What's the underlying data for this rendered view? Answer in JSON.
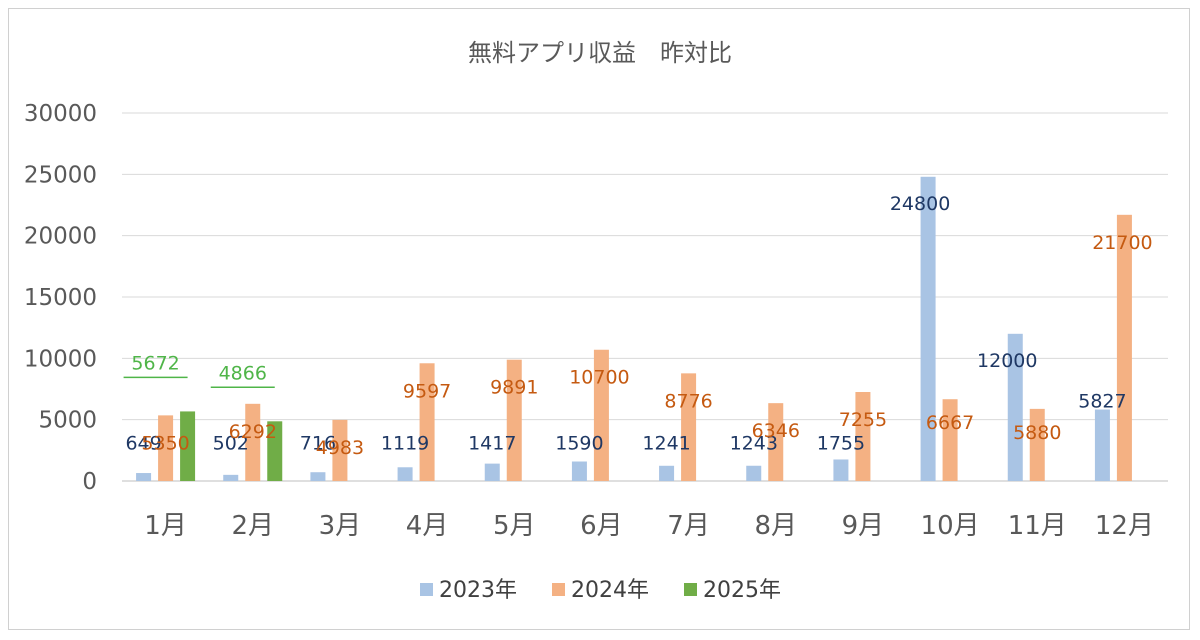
{
  "chart_data": {
    "type": "bar",
    "title": "無料アプリ収益　昨対比",
    "xlabel": "",
    "ylabel": "",
    "ylim": [
      0,
      30000
    ],
    "yticks": [
      0,
      5000,
      10000,
      15000,
      20000,
      25000,
      30000
    ],
    "grid": true,
    "legend_position": "bottom",
    "categories": [
      "1月",
      "2月",
      "3月",
      "4月",
      "5月",
      "6月",
      "7月",
      "8月",
      "9月",
      "10月",
      "11月",
      "12月"
    ],
    "series": [
      {
        "name": "2023年",
        "color": "#a9c4e4",
        "label_color": "#1f3864",
        "values": [
          649,
          502,
          716,
          1119,
          1417,
          1590,
          1241,
          1243,
          1755,
          24800,
          12000,
          5827
        ]
      },
      {
        "name": "2024年",
        "color": "#f4b183",
        "label_color": "#c55a11",
        "values": [
          5350,
          6292,
          4983,
          9597,
          9891,
          10700,
          8776,
          6346,
          7255,
          6667,
          5880,
          21700
        ]
      },
      {
        "name": "2025年",
        "color": "#70ad47",
        "label_color": "#4fb548",
        "values": [
          5672,
          4866,
          null,
          null,
          null,
          null,
          null,
          null,
          null,
          null,
          null,
          null
        ]
      }
    ]
  }
}
